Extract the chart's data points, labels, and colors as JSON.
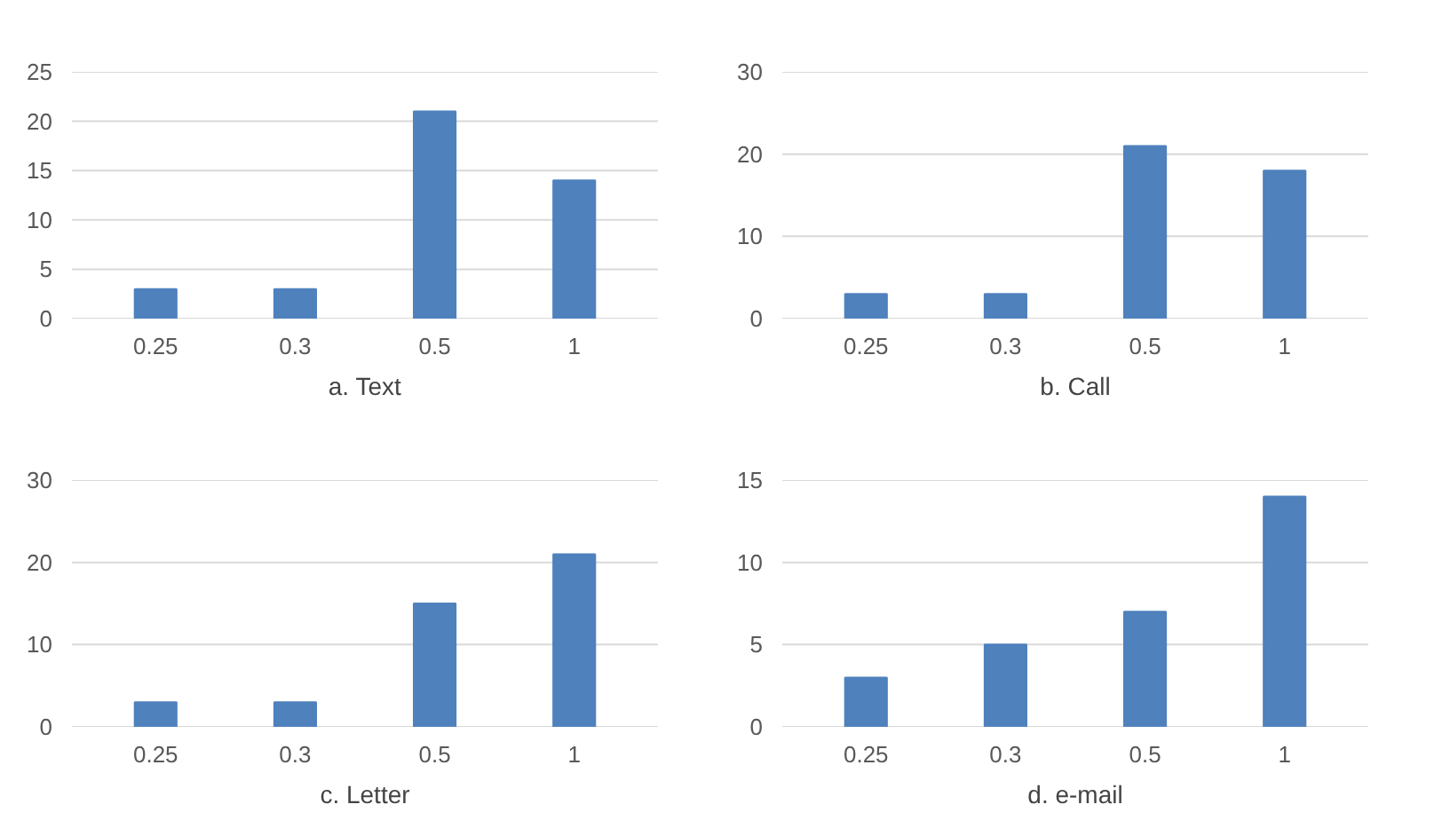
{
  "chart_data": [
    {
      "type": "bar",
      "title": "a. Text",
      "categories": [
        "0.25",
        "0.3",
        "0.5",
        "1"
      ],
      "values": [
        3,
        3,
        21,
        14
      ],
      "color": "#4f81bd",
      "ylim": [
        0,
        25
      ],
      "yticks": [
        0,
        5,
        10,
        15,
        20,
        25
      ],
      "grid": "y"
    },
    {
      "type": "bar",
      "title": "b. Call",
      "categories": [
        "0.25",
        "0.3",
        "0.5",
        "1"
      ],
      "values": [
        3,
        3,
        21,
        18
      ],
      "color": "#4f81bd",
      "ylim": [
        0,
        30
      ],
      "yticks": [
        0,
        10,
        20,
        30
      ],
      "grid": "y"
    },
    {
      "type": "bar",
      "title": "c. Letter",
      "categories": [
        "0.25",
        "0.3",
        "0.5",
        "1"
      ],
      "values": [
        3,
        3,
        15,
        21
      ],
      "color": "#4f81bd",
      "ylim": [
        0,
        30
      ],
      "yticks": [
        0,
        10,
        20,
        30
      ],
      "grid": "y"
    },
    {
      "type": "bar",
      "title": "d. e-mail",
      "categories": [
        "0.25",
        "0.3",
        "0.5",
        "1"
      ],
      "values": [
        3,
        5,
        7,
        14
      ],
      "color": "#4f81bd",
      "ylim": [
        0,
        15
      ],
      "yticks": [
        0,
        5,
        10,
        15
      ],
      "grid": "y"
    }
  ]
}
